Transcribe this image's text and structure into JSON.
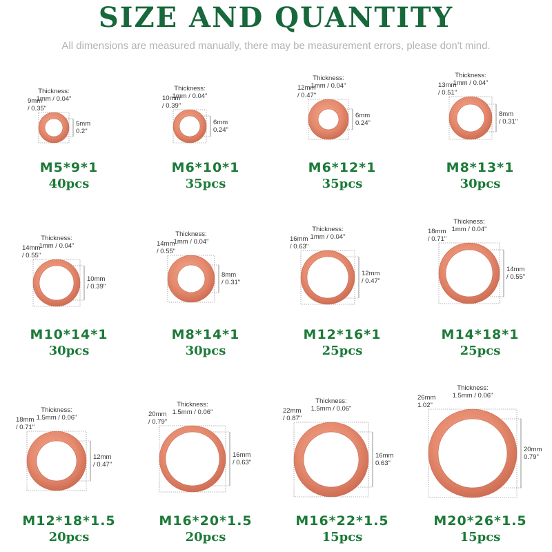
{
  "title": "SIZE AND QUANTITY",
  "subtitle": "All dimensions are measured manually, there may be measurement errors, please don't mind.",
  "colors": {
    "title": "#17683a",
    "label": "#1c7a38",
    "washer": "#e58a6e",
    "washer_dark": "#c9684f"
  },
  "washers": [
    {
      "thickness_label": "Thickness:",
      "thickness": "1mm / 0.04\"",
      "outer_mm": "9mm",
      "outer_in": "/ 0.35\"",
      "inner_mm": "5mm",
      "inner_in": "0.2\"",
      "model": "M5*9*1",
      "quantity": "40pcs"
    },
    {
      "thickness_label": "Thickness:",
      "thickness": "1mm / 0.04\"",
      "outer_mm": "10mm",
      "outer_in": "/ 0.39\"",
      "inner_mm": "6mm",
      "inner_in": "0.24\"",
      "model": "M6*10*1",
      "quantity": "35pcs"
    },
    {
      "thickness_label": "Thickness:",
      "thickness": "1mm / 0.04\"",
      "outer_mm": "12mm",
      "outer_in": "/ 0.47\"",
      "inner_mm": "6mm",
      "inner_in": "0.24\"",
      "model": "M6*12*1",
      "quantity": "35pcs"
    },
    {
      "thickness_label": "Thickness:",
      "thickness": "1mm / 0.04\"",
      "outer_mm": "13mm",
      "outer_in": "/ 0.51\"",
      "inner_mm": "8mm",
      "inner_in": "/ 0.31\"",
      "model": "M8*13*1",
      "quantity": "30pcs"
    },
    {
      "thickness_label": "Thickness:",
      "thickness": "1mm / 0.04\"",
      "outer_mm": "14mm",
      "outer_in": "/ 0.55\"",
      "inner_mm": "10mm",
      "inner_in": "/ 0.39\"",
      "model": "M10*14*1",
      "quantity": "30pcs"
    },
    {
      "thickness_label": "Thickness:",
      "thickness": "1mm / 0.04\"",
      "outer_mm": "14mm",
      "outer_in": "/ 0.55\"",
      "inner_mm": "8mm",
      "inner_in": "/ 0.31\"",
      "model": "M8*14*1",
      "quantity": "30pcs"
    },
    {
      "thickness_label": "Thickness:",
      "thickness": "1mm / 0.04\"",
      "outer_mm": "16mm",
      "outer_in": "/ 0.63\"",
      "inner_mm": "12mm",
      "inner_in": "/ 0.47\"",
      "model": "M12*16*1",
      "quantity": "25pcs"
    },
    {
      "thickness_label": "Thickness:",
      "thickness": "1mm / 0.04\"",
      "outer_mm": "18mm",
      "outer_in": "/ 0.71\"",
      "inner_mm": "14mm",
      "inner_in": "/ 0.55\"",
      "model": "M14*18*1",
      "quantity": "25pcs"
    },
    {
      "thickness_label": "Thickness:",
      "thickness": "1.5mm / 0.06\"",
      "outer_mm": "18mm",
      "outer_in": "/ 0.71\"",
      "inner_mm": "12mm",
      "inner_in": "/ 0.47\"",
      "model": "M12*18*1.5",
      "quantity": "20pcs"
    },
    {
      "thickness_label": "Thickness:",
      "thickness": "1.5mm / 0.06\"",
      "outer_mm": "20mm",
      "outer_in": "/ 0.79\"",
      "inner_mm": "16mm",
      "inner_in": "/ 0.63\"",
      "model": "M16*20*1.5",
      "quantity": "20pcs"
    },
    {
      "thickness_label": "Thickness:",
      "thickness": "1.5mm / 0.06\"",
      "outer_mm": "22mm",
      "outer_in": "/ 0.87\"",
      "inner_mm": "16mm",
      "inner_in": "0.63\"",
      "model": "M16*22*1.5",
      "quantity": "15pcs"
    },
    {
      "thickness_label": "Thickness:",
      "thickness": "1.5mm / 0.06\"",
      "outer_mm": "26mm",
      "outer_in": "1.02\"",
      "inner_mm": "20mm",
      "inner_in": "0.79\"",
      "model": "M20*26*1.5",
      "quantity": "15pcs"
    }
  ]
}
